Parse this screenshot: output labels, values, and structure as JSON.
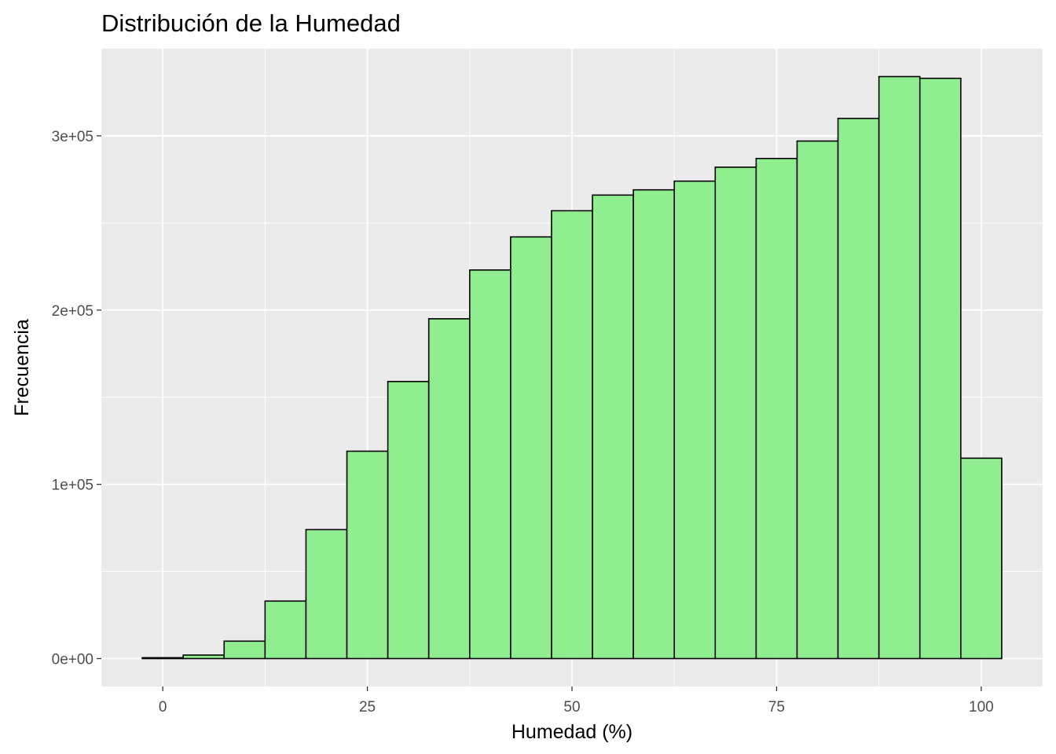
{
  "chart_data": {
    "type": "bar",
    "title": "Distribución de la Humedad",
    "xlabel": "Humedad (%)",
    "ylabel": "Frecuencia",
    "bin_width": 5,
    "x": [
      0,
      5,
      10,
      15,
      20,
      25,
      30,
      35,
      40,
      45,
      50,
      55,
      60,
      65,
      70,
      75,
      80,
      85,
      90,
      95,
      100
    ],
    "values": [
      500,
      2000,
      10000,
      33000,
      74000,
      119000,
      159000,
      195000,
      223000,
      242000,
      257000,
      266000,
      269000,
      274000,
      282000,
      287000,
      297000,
      310000,
      334000,
      333000,
      115000
    ],
    "xlim": [
      -7.5,
      107.5
    ],
    "ylim": [
      -16000,
      350000
    ],
    "x_ticks": [
      0,
      25,
      50,
      75,
      100
    ],
    "x_tick_labels": [
      "0",
      "25",
      "50",
      "75",
      "100"
    ],
    "y_ticks": [
      0,
      100000,
      200000,
      300000
    ],
    "y_tick_labels": [
      "0e+00",
      "1e+05",
      "2e+05",
      "3e+05"
    ],
    "grid": true,
    "legend": "none",
    "colors": {
      "bar_fill": "#90EE90",
      "bar_outline": "#000000",
      "panel_background": "#EBEBEB",
      "grid": "#FFFFFF"
    }
  }
}
